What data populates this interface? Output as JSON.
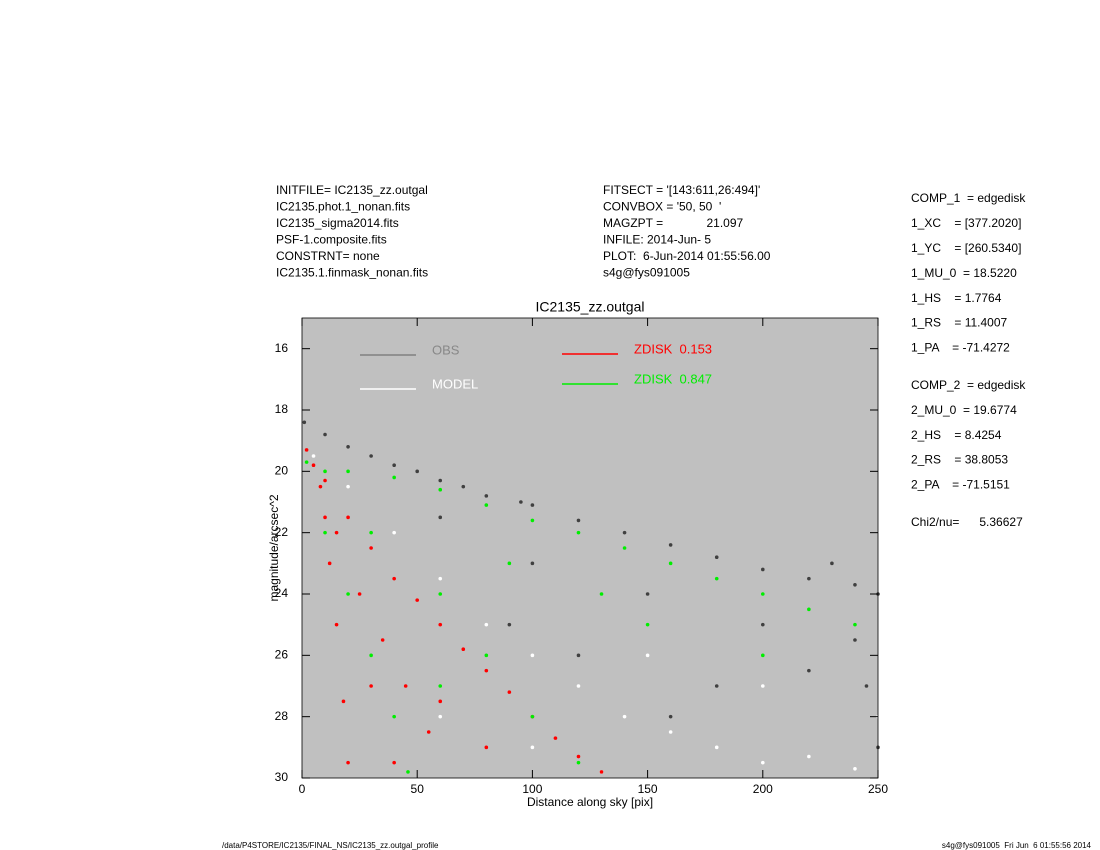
{
  "header": {
    "left": [
      "INITFILE= IC2135_zz.outgal",
      "IC2135.phot.1_nonan.fits",
      "IC2135_sigma2014.fits",
      "PSF-1.composite.fits",
      "CONSTRNT= none",
      "IC2135.1.finmask_nonan.fits"
    ],
    "middle": [
      "FITSECT = '[143:611,26:494]'",
      "CONVBOX = '50, 50  '",
      "MAGZPT =             21.097",
      "INFILE: 2014-Jun- 5",
      "PLOT:  6-Jun-2014 01:55:56.00",
      "s4g@fys091005"
    ],
    "right": [
      [
        "COMP_1  = edgedisk",
        "1_XC    = [377.2020]",
        "1_YC    = [260.5340]",
        "1_MU_0  = 18.5220",
        "1_HS    = 1.7764",
        "1_RS    = 11.4007",
        "1_PA    = -71.4272"
      ],
      [
        "COMP_2  = edgedisk",
        "2_MU_0  = 19.6774",
        "2_HS    = 8.4254",
        "2_RS    = 38.8053",
        "2_PA    = -71.5151"
      ],
      [
        "Chi2/nu=      5.36627"
      ]
    ]
  },
  "footer": {
    "left": "/data/P4STORE/IC2135/FINAL_NS/IC2135_zz.outgal_profile",
    "right": "s4g@fys091005  Fri Jun  6 01:55:56 2014"
  },
  "chart_data": {
    "type": "scatter",
    "title": "IC2135_zz.outgal",
    "x_label": "Distance along sky [pix]",
    "y_label": "magnitude/arcsec^2",
    "xlim": [
      0,
      250
    ],
    "ylim": [
      30,
      15
    ],
    "xticks": [
      0,
      50,
      100,
      150,
      200,
      250
    ],
    "yticks": [
      16,
      18,
      20,
      22,
      24,
      26,
      28,
      30
    ],
    "background": "#c0c0c0",
    "legend": "upper-left",
    "series": [
      {
        "name": "OBS",
        "color": "#404040",
        "x": [
          1,
          10,
          20,
          30,
          40,
          50,
          60,
          70,
          80,
          95,
          100,
          120,
          140,
          160,
          180,
          200,
          220,
          240,
          250,
          230,
          60,
          100,
          150,
          200,
          240,
          120,
          180,
          220,
          160,
          245,
          90,
          250
        ],
        "values": [
          18.4,
          18.8,
          19.2,
          19.5,
          19.8,
          20,
          20.3,
          20.5,
          20.8,
          21,
          21.1,
          21.6,
          22,
          22.4,
          22.8,
          23.2,
          23.5,
          23.7,
          24,
          23,
          21.5,
          23,
          24,
          25,
          25.5,
          26,
          27,
          26.5,
          28,
          27,
          25,
          29
        ]
      },
      {
        "name": "MODEL",
        "color": "#ffffff",
        "x": [
          5,
          20,
          40,
          60,
          80,
          100,
          120,
          140,
          160,
          180,
          200,
          220,
          240,
          150,
          200,
          250,
          100,
          60,
          130
        ],
        "values": [
          19.5,
          20.5,
          22,
          23.5,
          25,
          26,
          27,
          28,
          28.5,
          29,
          29.5,
          29.3,
          29.7,
          26,
          27,
          28,
          29,
          28,
          29.8
        ]
      },
      {
        "name": "ZDISK  0.153",
        "color": "#ff0000",
        "x": [
          2,
          5,
          8,
          10,
          12,
          15,
          18,
          20,
          10,
          20,
          30,
          40,
          50,
          60,
          70,
          80,
          90,
          100,
          110,
          120,
          130,
          25,
          35,
          45,
          55,
          15,
          30,
          60,
          80,
          40
        ],
        "values": [
          19.3,
          19.8,
          20.5,
          21.5,
          23,
          25,
          27.5,
          29.5,
          20.3,
          21.5,
          22.5,
          23.5,
          24.2,
          25,
          25.8,
          26.5,
          27.2,
          28,
          28.7,
          29.3,
          29.8,
          24,
          25.5,
          27,
          28.5,
          22,
          27,
          27.5,
          29,
          29.5
        ]
      },
      {
        "name": "ZDISK  0.847",
        "color": "#00ee00",
        "x": [
          2,
          10,
          20,
          40,
          60,
          80,
          100,
          120,
          140,
          160,
          180,
          200,
          220,
          240,
          10,
          20,
          30,
          40,
          46,
          30,
          60,
          80,
          100,
          120,
          150,
          200,
          60,
          90,
          130
        ],
        "values": [
          19.7,
          20,
          20,
          20.2,
          20.6,
          21.1,
          21.6,
          22,
          22.5,
          23,
          23.5,
          24,
          24.5,
          25,
          22,
          24,
          26,
          28,
          29.8,
          22,
          24,
          26,
          28,
          29.5,
          25,
          26,
          27,
          23,
          24
        ]
      }
    ]
  }
}
